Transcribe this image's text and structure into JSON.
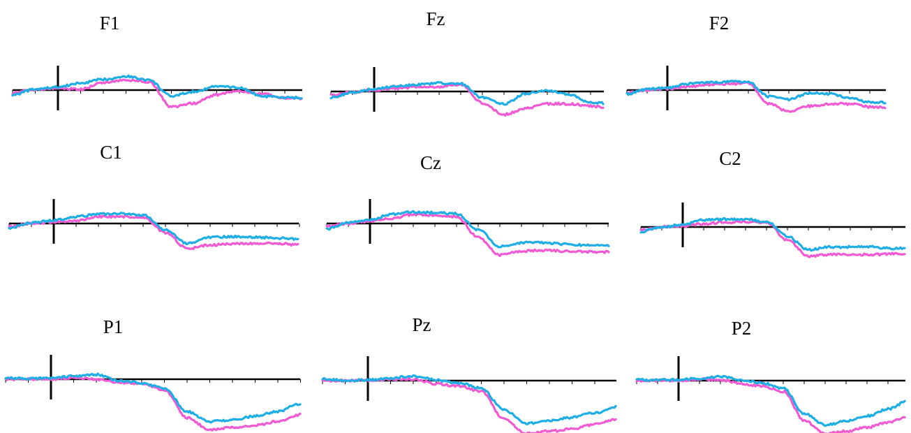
{
  "chart_data": [
    {
      "type": "line",
      "title": "F1",
      "x": [
        -200,
        -100,
        0,
        100,
        200,
        300,
        400,
        500,
        600,
        700,
        800,
        900,
        1000,
        1100,
        1200,
        1300
      ],
      "series": [
        {
          "color": "#1eaee4",
          "values": [
            -0.6,
            0.1,
            0.4,
            0.9,
            1.4,
            1.8,
            1.3,
            -0.8,
            -0.2,
            0.5,
            0.3,
            -0.8,
            -1.0,
            -1.0,
            -1.0,
            -1.2
          ]
        },
        {
          "color": "#f05ad2",
          "values": [
            -0.4,
            0.1,
            0.2,
            0.1,
            1.0,
            1.3,
            1.1,
            -2.2,
            -1.7,
            -0.6,
            -0.1,
            -0.5,
            -1.0,
            -1.2,
            -1.5,
            -1.5
          ]
        }
      ]
    },
    {
      "type": "line",
      "title": "Fz",
      "x": [
        -200,
        -100,
        0,
        100,
        200,
        300,
        400,
        500,
        600,
        700,
        800,
        900,
        1000,
        1100,
        1200,
        1300
      ],
      "series": [
        {
          "color": "#1eaee4",
          "values": [
            -0.8,
            -0.1,
            0.3,
            0.7,
            0.9,
            1.1,
            1.0,
            -0.8,
            -1.6,
            -0.3,
            0.1,
            -0.4,
            -1.4,
            -1.6,
            -1.5,
            -1.7
          ]
        },
        {
          "color": "#f05ad2",
          "values": [
            -0.5,
            -0.1,
            0.2,
            0.4,
            0.6,
            0.6,
            0.9,
            -1.5,
            -3.0,
            -2.2,
            -1.6,
            -1.6,
            -1.9,
            -2.3,
            -2.2,
            -2.3
          ]
        }
      ]
    },
    {
      "type": "line",
      "title": "F2",
      "x": [
        -200,
        -100,
        0,
        100,
        200,
        300,
        400,
        500,
        600,
        700,
        800,
        900,
        1000,
        1100,
        1200,
        1300
      ],
      "series": [
        {
          "color": "#1eaee4",
          "values": [
            -0.5,
            0.1,
            0.3,
            0.8,
            1.0,
            1.1,
            1.0,
            -0.8,
            -1.2,
            -0.4,
            -0.5,
            -1.0,
            -1.6,
            -1.6,
            -1.6,
            -1.5
          ]
        },
        {
          "color": "#f05ad2",
          "values": [
            -0.3,
            0.0,
            0.2,
            0.4,
            0.7,
            0.8,
            0.9,
            -1.8,
            -2.8,
            -2.1,
            -1.8,
            -1.8,
            -2.2,
            -2.2,
            -2.3,
            -2.3
          ]
        }
      ]
    },
    {
      "type": "line",
      "title": "C1",
      "x": [
        -200,
        -100,
        0,
        100,
        200,
        300,
        400,
        500,
        600,
        700,
        800,
        900,
        1000,
        1100,
        1200,
        1300
      ],
      "series": [
        {
          "color": "#1eaee4",
          "values": [
            -0.6,
            0.1,
            0.4,
            0.9,
            1.2,
            1.3,
            1.1,
            -0.8,
            -2.6,
            -1.8,
            -1.7,
            -1.8,
            -1.9,
            -2.0,
            -1.6,
            -1.4
          ]
        },
        {
          "color": "#f05ad2",
          "values": [
            -0.4,
            0.0,
            0.2,
            0.4,
            0.9,
            0.9,
            0.8,
            -1.2,
            -3.3,
            -2.8,
            -2.6,
            -2.6,
            -2.6,
            -2.8,
            -2.7,
            -2.5
          ]
        }
      ]
    },
    {
      "type": "line",
      "title": "Cz",
      "x": [
        -200,
        -100,
        0,
        100,
        200,
        300,
        400,
        500,
        600,
        700,
        800,
        900,
        1000,
        1100,
        1200,
        1300
      ],
      "series": [
        {
          "color": "#1eaee4",
          "values": [
            -0.7,
            0.1,
            0.5,
            1.2,
            1.5,
            1.4,
            1.3,
            -0.8,
            -3.0,
            -2.5,
            -2.5,
            -2.7,
            -2.8,
            -2.9,
            -2.5,
            -2.3
          ]
        },
        {
          "color": "#f05ad2",
          "values": [
            -0.4,
            0.0,
            0.3,
            0.6,
            1.2,
            1.0,
            0.9,
            -1.8,
            -4.1,
            -3.6,
            -3.5,
            -3.6,
            -3.7,
            -3.7,
            -3.5,
            -3.1
          ]
        }
      ]
    },
    {
      "type": "line",
      "title": "C2",
      "x": [
        -200,
        -100,
        0,
        100,
        200,
        300,
        400,
        500,
        600,
        700,
        800,
        900,
        1000,
        1100,
        1200,
        1300
      ],
      "series": [
        {
          "color": "#1eaee4",
          "values": [
            -0.6,
            0.0,
            0.3,
            0.9,
            1.0,
            1.0,
            0.7,
            -1.2,
            -3.0,
            -2.6,
            -2.6,
            -2.6,
            -2.8,
            -2.7,
            -2.4,
            -2.1
          ]
        },
        {
          "color": "#f05ad2",
          "values": [
            -0.4,
            0.0,
            0.1,
            0.4,
            0.6,
            0.7,
            0.6,
            -1.7,
            -3.8,
            -3.6,
            -3.6,
            -3.6,
            -3.5,
            -3.6,
            -3.3,
            -3.0
          ]
        }
      ]
    },
    {
      "type": "line",
      "title": "P1",
      "x": [
        -200,
        -100,
        0,
        100,
        200,
        300,
        400,
        500,
        600,
        700,
        800,
        900,
        1000,
        1100,
        1200,
        1300
      ],
      "series": [
        {
          "color": "#1eaee4",
          "values": [
            0.2,
            0.1,
            0.1,
            0.4,
            0.6,
            -0.2,
            -0.5,
            -1.2,
            -4.2,
            -5.5,
            -5.3,
            -4.8,
            -4.2,
            -3.2,
            -1.7,
            -1.0
          ]
        },
        {
          "color": "#f05ad2",
          "values": [
            0.0,
            0.0,
            0.0,
            0.2,
            0.0,
            -0.4,
            -0.6,
            -1.4,
            -5.0,
            -6.6,
            -6.3,
            -6.0,
            -5.5,
            -4.6,
            -3.8,
            -3.1
          ]
        }
      ]
    },
    {
      "type": "line",
      "title": "Pz",
      "x": [
        -200,
        -100,
        0,
        100,
        200,
        300,
        400,
        500,
        600,
        700,
        800,
        900,
        1000,
        1100,
        1200,
        1300
      ],
      "series": [
        {
          "color": "#1eaee4",
          "values": [
            0.2,
            0.0,
            0.1,
            0.3,
            0.6,
            0.1,
            -0.3,
            -1.0,
            -3.8,
            -5.6,
            -5.2,
            -4.8,
            -4.2,
            -3.4,
            -1.9,
            -1.3
          ]
        },
        {
          "color": "#f05ad2",
          "values": [
            0.0,
            0.0,
            0.0,
            0.2,
            0.2,
            -0.4,
            -0.7,
            -1.4,
            -5.0,
            -6.9,
            -6.6,
            -6.3,
            -5.7,
            -5.0,
            -4.2,
            -3.4
          ]
        }
      ]
    },
    {
      "type": "line",
      "title": "P2",
      "x": [
        -200,
        -100,
        0,
        100,
        200,
        300,
        400,
        500,
        600,
        700,
        800,
        900,
        1000,
        1100,
        1200,
        1300
      ],
      "series": [
        {
          "color": "#1eaee4",
          "values": [
            0.1,
            0.1,
            0.1,
            0.3,
            0.5,
            0.1,
            -0.3,
            -1.0,
            -4.3,
            -5.8,
            -5.3,
            -4.6,
            -3.7,
            -2.6,
            -1.6,
            -1.2
          ]
        },
        {
          "color": "#f05ad2",
          "values": [
            0.0,
            0.0,
            0.0,
            0.2,
            0.1,
            -0.4,
            -0.7,
            -1.4,
            -5.2,
            -6.9,
            -6.6,
            -6.1,
            -5.4,
            -4.7,
            -4.0,
            -3.4
          ]
        }
      ]
    }
  ]
}
